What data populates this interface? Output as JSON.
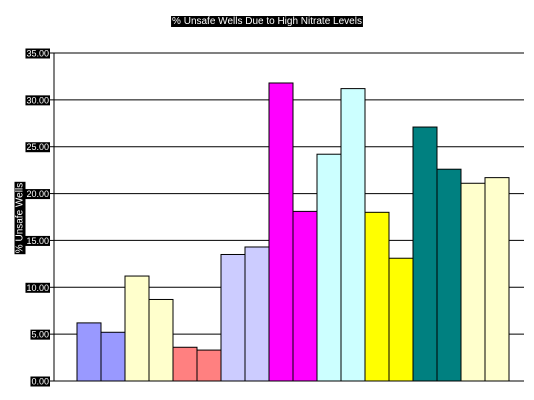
{
  "chart_data": {
    "type": "bar",
    "title": "% Unsafe Wells Due to High Nitrate Levels",
    "xlabel": "",
    "ylabel": "% Unsafe Wells",
    "ylim": [
      0,
      35
    ],
    "yticks": [
      "0.00",
      "5.00",
      "10.00",
      "15.00",
      "20.00",
      "25.00",
      "30.00",
      "35.00"
    ],
    "grid": true,
    "legend": "none",
    "values": [
      6.2,
      5.2,
      11.2,
      8.7,
      3.6,
      3.3,
      13.5,
      14.3,
      31.8,
      18.1,
      24.2,
      31.2,
      18.0,
      13.1,
      27.1,
      22.6,
      21.1,
      21.7
    ],
    "colors": [
      "#9999ff",
      "#9999ff",
      "#ffffcc",
      "#ffffcc",
      "#ff8080",
      "#ff8080",
      "#ccccff",
      "#ccccff",
      "#ff00ff",
      "#ff00ff",
      "#ccffff",
      "#ccffff",
      "#ffff00",
      "#ffff00",
      "#008080",
      "#008080",
      "#ffffcc",
      "#ffffcc"
    ]
  }
}
